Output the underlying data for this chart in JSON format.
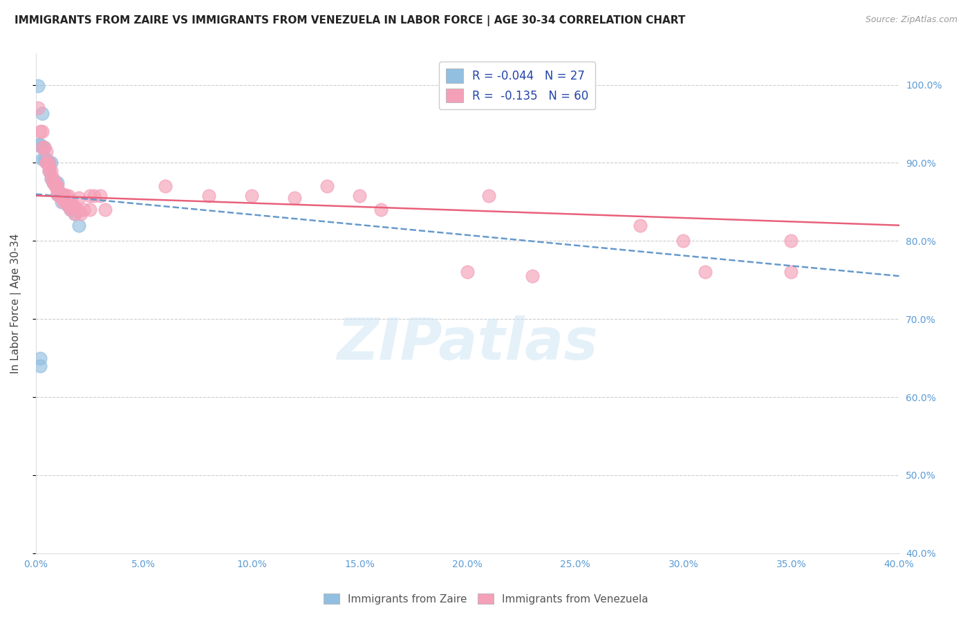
{
  "title": "IMMIGRANTS FROM ZAIRE VS IMMIGRANTS FROM VENEZUELA IN LABOR FORCE | AGE 30-34 CORRELATION CHART",
  "source": "Source: ZipAtlas.com",
  "ylabel": "In Labor Force | Age 30-34",
  "xlim": [
    0.0,
    0.4
  ],
  "ylim": [
    0.4,
    1.04
  ],
  "yticks": [
    0.4,
    0.5,
    0.6,
    0.7,
    0.8,
    0.9,
    1.0
  ],
  "ytick_labels": [
    "40.0%",
    "50.0%",
    "60.0%",
    "70.0%",
    "80.0%",
    "90.0%",
    "100.0%"
  ],
  "xticks": [
    0.0,
    0.05,
    0.1,
    0.15,
    0.2,
    0.25,
    0.3,
    0.35,
    0.4
  ],
  "xtick_labels": [
    "0.0%",
    "5.0%",
    "10.0%",
    "15.0%",
    "20.0%",
    "25.0%",
    "30.0%",
    "35.0%",
    "40.0%"
  ],
  "zaire_color": "#92bfe0",
  "venezuela_color": "#f4a0b8",
  "zaire_line_color": "#6699cc",
  "venezuela_line_color": "#e8607a",
  "r_zaire": -0.044,
  "n_zaire": 27,
  "r_venezuela": -0.135,
  "n_venezuela": 60,
  "legend_label_zaire": "Immigrants from Zaire",
  "legend_label_venezuela": "Immigrants from Venezuela",
  "zaire_line_x0": 0.0,
  "zaire_line_y0": 0.86,
  "zaire_line_x1": 0.4,
  "zaire_line_y1": 0.755,
  "venezuela_line_x0": 0.0,
  "venezuela_line_y0": 0.858,
  "venezuela_line_x1": 0.4,
  "venezuela_line_y1": 0.82,
  "zaire_points": [
    [
      0.001,
      0.999
    ],
    [
      0.003,
      0.963
    ],
    [
      0.001,
      0.923
    ],
    [
      0.002,
      0.923
    ],
    [
      0.003,
      0.92
    ],
    [
      0.003,
      0.905
    ],
    [
      0.004,
      0.92
    ],
    [
      0.004,
      0.905
    ],
    [
      0.005,
      0.905
    ],
    [
      0.006,
      0.9
    ],
    [
      0.006,
      0.89
    ],
    [
      0.007,
      0.9
    ],
    [
      0.007,
      0.88
    ],
    [
      0.008,
      0.875
    ],
    [
      0.009,
      0.875
    ],
    [
      0.01,
      0.875
    ],
    [
      0.01,
      0.86
    ],
    [
      0.011,
      0.86
    ],
    [
      0.012,
      0.86
    ],
    [
      0.012,
      0.85
    ],
    [
      0.014,
      0.85
    ],
    [
      0.015,
      0.845
    ],
    [
      0.016,
      0.84
    ],
    [
      0.018,
      0.835
    ],
    [
      0.02,
      0.82
    ],
    [
      0.002,
      0.65
    ],
    [
      0.002,
      0.64
    ]
  ],
  "venezuela_points": [
    [
      0.001,
      0.97
    ],
    [
      0.002,
      0.94
    ],
    [
      0.003,
      0.94
    ],
    [
      0.003,
      0.92
    ],
    [
      0.004,
      0.92
    ],
    [
      0.005,
      0.915
    ],
    [
      0.005,
      0.9
    ],
    [
      0.005,
      0.9
    ],
    [
      0.006,
      0.9
    ],
    [
      0.006,
      0.895
    ],
    [
      0.006,
      0.89
    ],
    [
      0.007,
      0.89
    ],
    [
      0.007,
      0.88
    ],
    [
      0.008,
      0.88
    ],
    [
      0.008,
      0.875
    ],
    [
      0.009,
      0.875
    ],
    [
      0.009,
      0.87
    ],
    [
      0.01,
      0.87
    ],
    [
      0.01,
      0.865
    ],
    [
      0.01,
      0.86
    ],
    [
      0.011,
      0.86
    ],
    [
      0.011,
      0.858
    ],
    [
      0.012,
      0.858
    ],
    [
      0.012,
      0.855
    ],
    [
      0.013,
      0.86
    ],
    [
      0.013,
      0.855
    ],
    [
      0.013,
      0.85
    ],
    [
      0.014,
      0.858
    ],
    [
      0.014,
      0.85
    ],
    [
      0.015,
      0.858
    ],
    [
      0.015,
      0.845
    ],
    [
      0.016,
      0.848
    ],
    [
      0.016,
      0.84
    ],
    [
      0.017,
      0.845
    ],
    [
      0.018,
      0.845
    ],
    [
      0.018,
      0.835
    ],
    [
      0.02,
      0.855
    ],
    [
      0.02,
      0.838
    ],
    [
      0.021,
      0.835
    ],
    [
      0.022,
      0.84
    ],
    [
      0.025,
      0.858
    ],
    [
      0.025,
      0.84
    ],
    [
      0.027,
      0.858
    ],
    [
      0.03,
      0.858
    ],
    [
      0.032,
      0.84
    ],
    [
      0.06,
      0.87
    ],
    [
      0.08,
      0.858
    ],
    [
      0.1,
      0.858
    ],
    [
      0.12,
      0.855
    ],
    [
      0.135,
      0.87
    ],
    [
      0.15,
      0.858
    ],
    [
      0.16,
      0.84
    ],
    [
      0.2,
      0.76
    ],
    [
      0.21,
      0.858
    ],
    [
      0.23,
      0.755
    ],
    [
      0.28,
      0.82
    ],
    [
      0.3,
      0.8
    ],
    [
      0.31,
      0.76
    ],
    [
      0.35,
      0.8
    ],
    [
      0.35,
      0.76
    ]
  ],
  "watermark": "ZIPatlas",
  "background_color": "#ffffff",
  "grid_color": "#cccccc",
  "title_fontsize": 11,
  "axis_label_fontsize": 11,
  "tick_fontsize": 10,
  "tick_color": "#5b9bd5",
  "legend_text_color": "#2244aa"
}
